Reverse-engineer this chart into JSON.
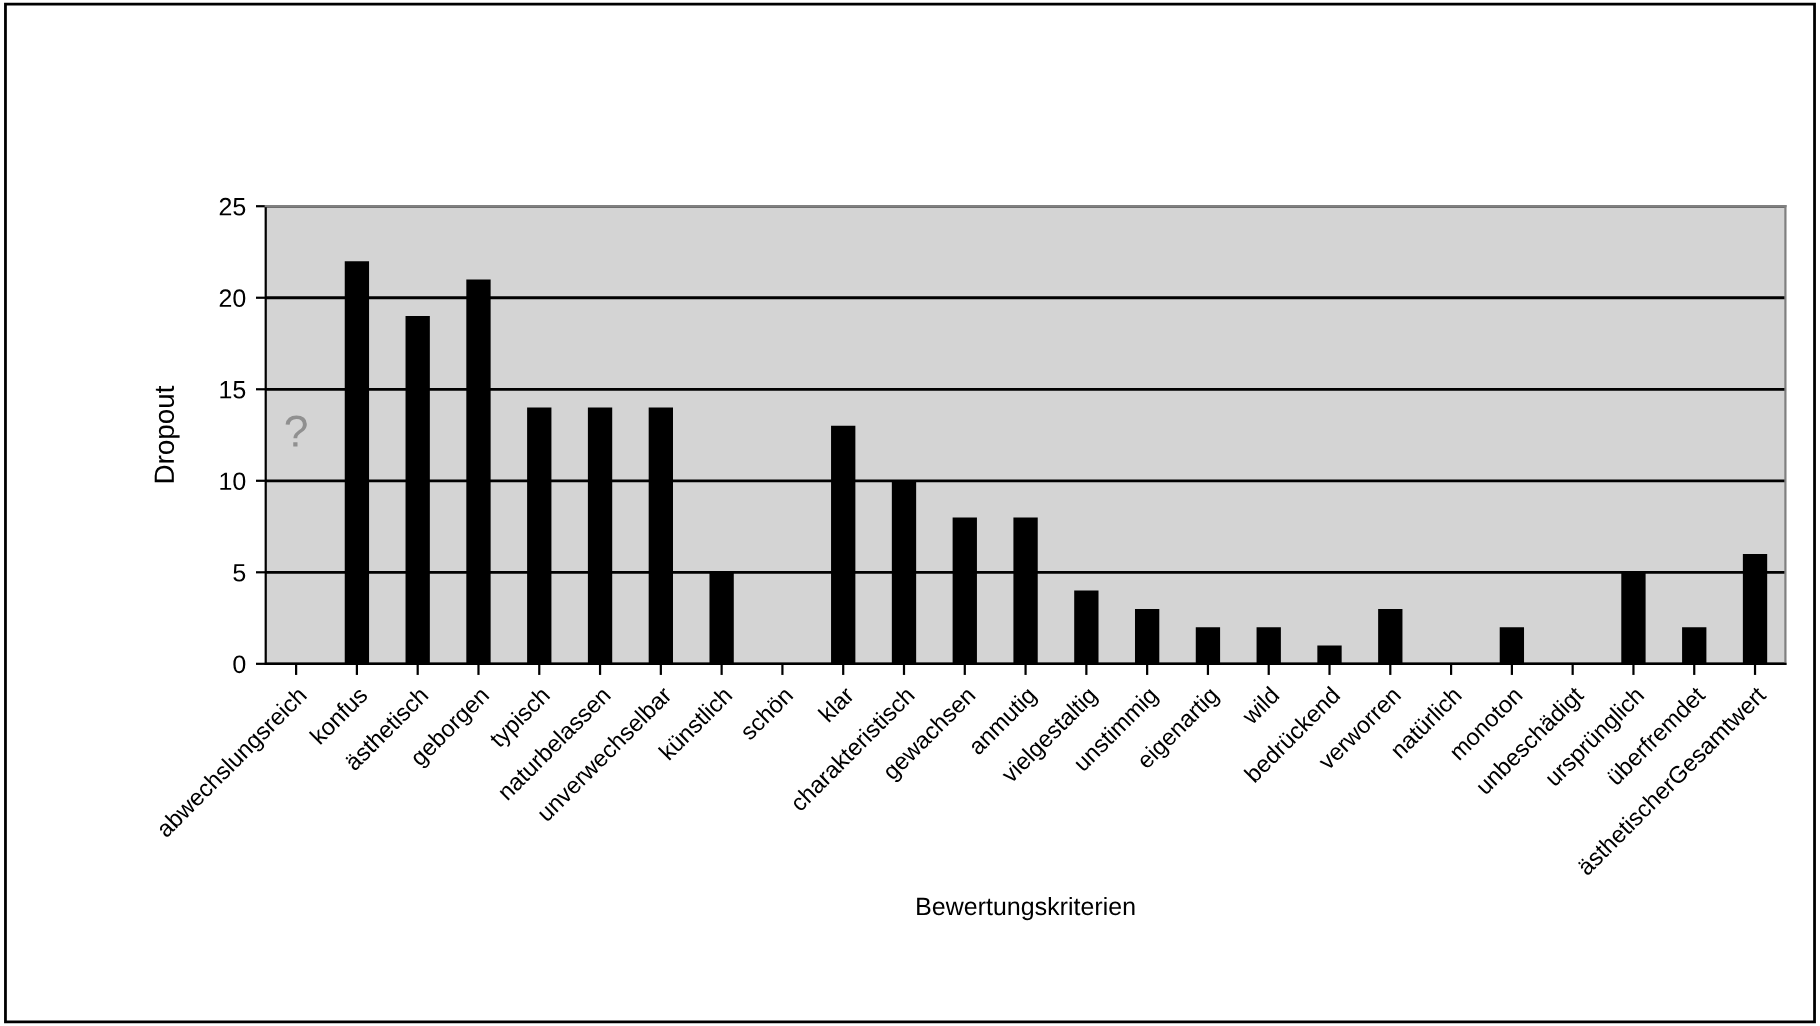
{
  "chart_data": {
    "type": "bar",
    "xlabel": "Bewertungskriterien",
    "ylabel": "Dropout",
    "categories": [
      "abwechslungsreich",
      "konfus",
      "ästhetisch",
      "geborgen",
      "typisch",
      "naturbelassen",
      "unverwechselbar",
      "künstlich",
      "schön",
      "klar",
      "charakteristisch",
      "gewachsen",
      "anmutig",
      "vielgestaltig",
      "unstimmig",
      "eigenartig",
      "wild",
      "bedrückend",
      "verworren",
      "natürlich",
      "monoton",
      "unbeschädigt",
      "ursprünglich",
      "überfremdet",
      "ästhetischerGesamtwert"
    ],
    "values": [
      null,
      22,
      19,
      21,
      14,
      14,
      14,
      5,
      0,
      13,
      10,
      8,
      8,
      4,
      3,
      2,
      2,
      1,
      3,
      0,
      2,
      0,
      5,
      2,
      6
    ],
    "color": "#000000",
    "ylim": [
      0,
      25
    ],
    "yticks": [
      0,
      5,
      10,
      15,
      20,
      25
    ],
    "grid": "y",
    "annotations": [
      "?"
    ]
  }
}
